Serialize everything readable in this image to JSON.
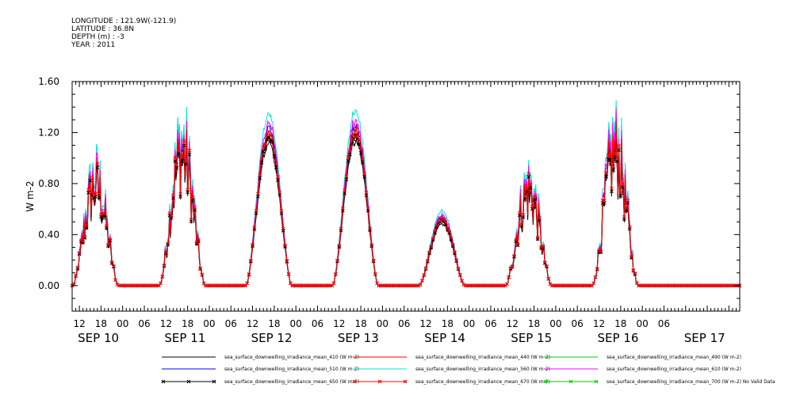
{
  "header": {
    "longitude": "LONGITUDE : 121.9W(-121.9)",
    "latitude": "LATITUDE : 36.8N",
    "depth": "DEPTH (m) : -3",
    "year": "YEAR : 2011"
  },
  "chart_data": {
    "type": "line",
    "title": "",
    "xlabel": "",
    "ylabel": "W m-2",
    "ylim": [
      -0.2,
      1.6
    ],
    "yticks": [
      "0.00",
      "0.40",
      "0.80",
      "1.20",
      "1.60"
    ],
    "ytick_values": [
      0.0,
      0.4,
      0.8,
      1.2,
      1.6
    ],
    "x_range_hours": [
      -14,
      171
    ],
    "hour_ticks": [
      "12",
      "18",
      "00",
      "06",
      "12",
      "18",
      "00",
      "06",
      "12",
      "18",
      "00",
      "06",
      "12",
      "18",
      "00",
      "06",
      "12",
      "18",
      "00",
      "06",
      "12",
      "18",
      "00",
      "06",
      "12",
      "18",
      "00",
      "06"
    ],
    "hour_tick_values": [
      -12,
      -6,
      0,
      6,
      12,
      18,
      24,
      30,
      36,
      42,
      48,
      54,
      60,
      66,
      72,
      78,
      84,
      90,
      96,
      102,
      108,
      114,
      120,
      126,
      132,
      138,
      144,
      150
    ],
    "date_labels": [
      "SEP 10",
      "SEP 11",
      "SEP 12",
      "SEP 13",
      "SEP 14",
      "SEP 15",
      "SEP 16",
      "SEP 17"
    ],
    "date_label_values": [
      -12,
      12,
      36,
      60,
      84,
      108,
      132,
      156
    ],
    "grid": false,
    "legend_position": "bottom",
    "days": [
      {
        "day": "SEP 10",
        "peak_hour": -7.5,
        "peak": 0.98,
        "cloudy": true
      },
      {
        "day": "SEP 11",
        "peak_hour": 16.5,
        "peak": 1.3,
        "cloudy": true
      },
      {
        "day": "SEP 12",
        "peak_hour": 40.5,
        "peak": 1.2,
        "cloudy": false
      },
      {
        "day": "SEP 13",
        "peak_hour": 64.5,
        "peak": 1.22,
        "cloudy": false
      },
      {
        "day": "SEP 14",
        "peak_hour": 88.5,
        "peak": 0.52,
        "cloudy": false
      },
      {
        "day": "SEP 15",
        "peak_hour": 112.5,
        "peak": 0.92,
        "cloudy": true
      },
      {
        "day": "SEP 16",
        "peak_hour": 136.5,
        "peak": 1.3,
        "cloudy": true
      }
    ],
    "series": [
      {
        "name": "sea_surface_downwelling_irradiance_mean_410 (W m-2)",
        "color": "#000000",
        "scale": 0.93,
        "marker": "none"
      },
      {
        "name": "sea_surface_downwelling_irradiance_mean_440 (W m-2)",
        "color": "#ff0000",
        "scale": 0.96,
        "marker": "none"
      },
      {
        "name": "sea_surface_downwelling_irradiance_mean_490 (W m-2)",
        "color": "#00cc00",
        "scale": 0.99,
        "marker": "none"
      },
      {
        "name": "sea_surface_downwelling_irradiance_mean_510 (W m-2)",
        "color": "#0000ff",
        "scale": 1.03,
        "marker": "none"
      },
      {
        "name": "sea_surface_downwelling_irradiance_mean_560 (W m-2)",
        "color": "#00e0e0",
        "scale": 1.12,
        "marker": "none"
      },
      {
        "name": "sea_surface_downwelling_irradiance_mean_610 (W m-2)",
        "color": "#ff00ff",
        "scale": 1.06,
        "marker": "none"
      },
      {
        "name": "sea_surface_downwelling_irradiance_mean_650 (W m-2)",
        "color": "#000000",
        "scale": 0.97,
        "marker": "x"
      },
      {
        "name": "sea_surface_downwelling_irradiance_mean_670 (W m-2)",
        "color": "#ff0000",
        "scale": 1.0,
        "marker": "x"
      },
      {
        "name": "sea_surface_downwelling_irradiance_mean_700 (W m-2) No Valid Data",
        "color": "#00cc00",
        "scale": 0,
        "marker": "x"
      }
    ]
  }
}
